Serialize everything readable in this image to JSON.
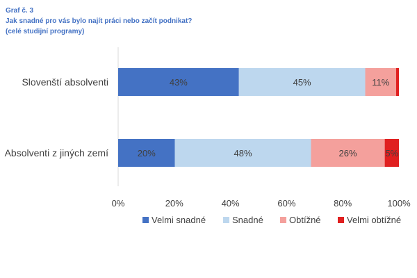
{
  "chart_title": {
    "line1": "Graf č. 3",
    "line2": "Jak snadné pro vás bylo najít práci nebo začít podnikat?",
    "line3": "(celé studijní programy)"
  },
  "colors": {
    "velmi_snadne": "#4472c4",
    "snadne": "#bdd7ee",
    "obtizne": "#f4a09c",
    "velmi_obtizne": "#e02020",
    "text": "#404040",
    "axis": "#d9d9d9"
  },
  "chart_data": {
    "type": "bar",
    "orientation": "horizontal",
    "stacked": "100%",
    "categories": [
      "Slovenští absolventi",
      "Absolventi z jiných zemí"
    ],
    "series": [
      {
        "name": "Velmi snadné",
        "values": [
          43,
          20
        ],
        "labels": [
          "43%",
          "20%"
        ]
      },
      {
        "name": "Snadné",
        "values": [
          45,
          48
        ],
        "labels": [
          "45%",
          "48%"
        ]
      },
      {
        "name": "Obtížné",
        "values": [
          11,
          26
        ],
        "labels": [
          "11%",
          "26%"
        ]
      },
      {
        "name": "Velmi obtížné",
        "values": [
          1,
          5
        ],
        "labels": [
          "",
          "5%"
        ]
      }
    ],
    "xlim": [
      0,
      100
    ],
    "x_ticks": [
      "0%",
      "20%",
      "40%",
      "60%",
      "80%",
      "100%"
    ],
    "grid": false,
    "legend_position": "bottom"
  }
}
